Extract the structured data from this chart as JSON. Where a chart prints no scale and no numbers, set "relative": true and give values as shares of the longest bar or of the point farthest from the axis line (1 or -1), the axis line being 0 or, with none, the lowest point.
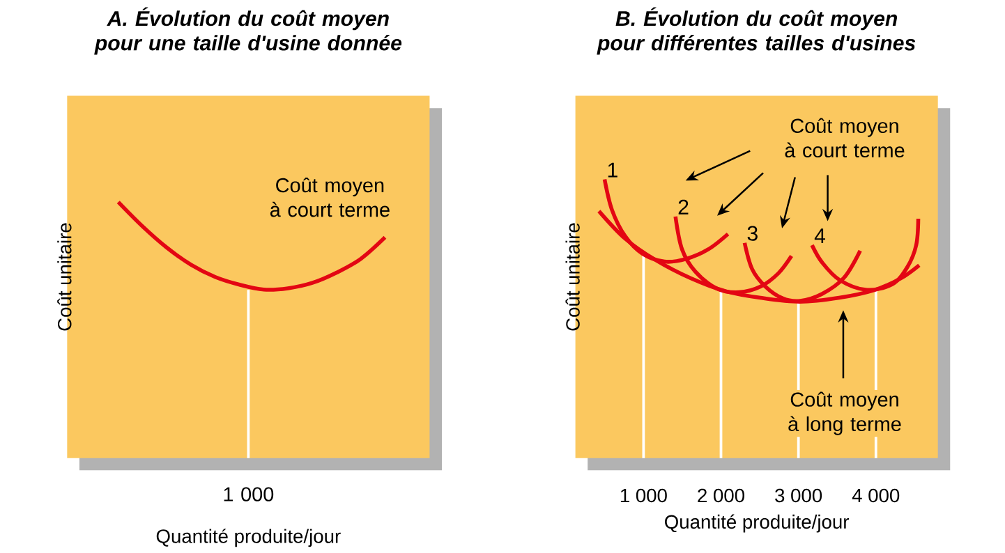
{
  "chart_data": [
    {
      "type": "line",
      "title": "A. Évolution du coût moyen pour une taille d'usine donnée",
      "xlabel": "Quantité produite/jour",
      "ylabel": "Coût unitaire",
      "relative": true,
      "categories": [
        null,
        null,
        null,
        null,
        null,
        null,
        null,
        null,
        null,
        null,
        null,
        null
      ],
      "annotations": [
        "Coût moyen à court terme",
        "1 000"
      ],
      "series": [
        {
          "color": "#e30613",
          "values": [
            1,
            0.905,
            0.822,
            0.755,
            0.707,
            0.677,
            0.658,
            0.663,
            0.684,
            0.724,
            0.778,
            0.862
          ]
        }
      ]
    },
    {
      "type": "line",
      "title": "B. Évolution du coût moyen pour différentes tailles d'usines",
      "xlabel": "Quantité produite/jour",
      "ylabel": "Coût unitaire",
      "relative": true,
      "xlim": [
        120,
        4800
      ],
      "xticks": [
        {
          "value": 1000,
          "label": "1 000"
        },
        {
          "value": 2000,
          "label": "2 000"
        },
        {
          "value": 3000,
          "label": "3 000"
        },
        {
          "value": 4000,
          "label": "4 000"
        }
      ],
      "annotations": [
        "Coût moyen à court terme",
        "Coût moyen à long terme"
      ],
      "ref_lines": [
        {
          "axis": "x",
          "value": 1000,
          "color": "#ffffff"
        },
        {
          "axis": "x",
          "value": 2000,
          "color": "#ffffff"
        },
        {
          "axis": "x",
          "value": 3000,
          "color": "#ffffff"
        },
        {
          "axis": "x",
          "value": 4000,
          "color": "#ffffff"
        }
      ],
      "series": [
        {
          "name": "1",
          "color": "#e30613",
          "x": [
            497,
            593,
            763,
            988,
            1271,
            1554,
            1836,
            2090
          ],
          "values": [
            1,
            0.89,
            0.796,
            0.733,
            0.705,
            0.715,
            0.749,
            0.804
          ]
        },
        {
          "name": "2",
          "color": "#e30613",
          "x": [
            1412,
            1497,
            1666,
            1949,
            2232,
            2514,
            2741,
            2910
          ],
          "values": [
            0.867,
            0.749,
            0.67,
            0.608,
            0.595,
            0.616,
            0.663,
            0.725
          ]
        },
        {
          "name": "3",
          "color": "#e30613",
          "x": [
            2305,
            2402,
            2571,
            2797,
            3022,
            3305,
            3588,
            3797
          ],
          "values": [
            0.772,
            0.678,
            0.616,
            0.573,
            0.564,
            0.589,
            0.647,
            0.744
          ]
        },
        {
          "name": "4",
          "color": "#e30613",
          "x": [
            3175,
            3305,
            3531,
            3869,
            4208,
            4407,
            4520,
            4547
          ],
          "values": [
            0.764,
            0.702,
            0.639,
            0.604,
            0.623,
            0.686,
            0.764,
            0.859
          ]
        },
        {
          "color": "#e30613",
          "x": [
            424,
            763,
            1153,
            1610,
            2068,
            2508,
            3017,
            3525,
            3983,
            4322,
            4559
          ],
          "values": [
            0.886,
            0.787,
            0.711,
            0.645,
            0.598,
            0.575,
            0.561,
            0.575,
            0.603,
            0.645,
            0.692
          ]
        }
      ]
    }
  ]
}
